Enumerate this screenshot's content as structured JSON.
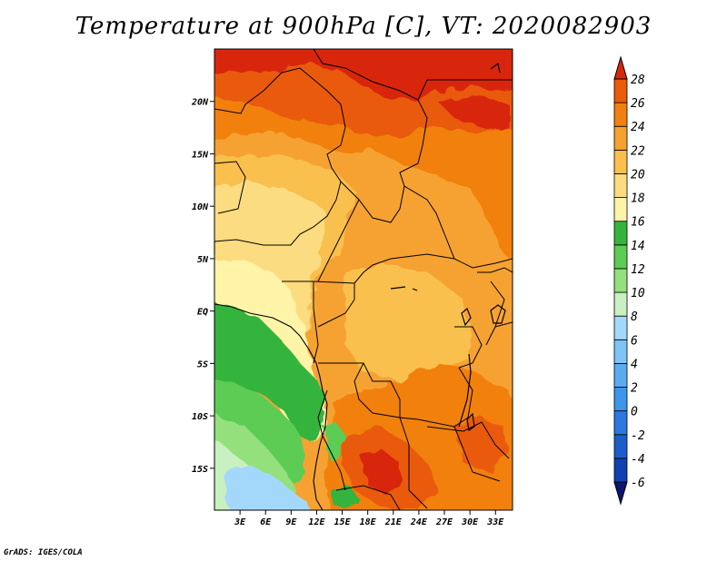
{
  "title": "Temperature at 900hPa [C], VT: 2020082903",
  "credit": "GrADS: IGES/COLA",
  "map": {
    "lon_range": [
      0,
      35
    ],
    "lat_range": [
      -19,
      25
    ],
    "x_ticks": [
      {
        "value": 3,
        "label": "3E"
      },
      {
        "value": 6,
        "label": "6E"
      },
      {
        "value": 9,
        "label": "9E"
      },
      {
        "value": 12,
        "label": "12E"
      },
      {
        "value": 15,
        "label": "15E"
      },
      {
        "value": 18,
        "label": "18E"
      },
      {
        "value": 21,
        "label": "21E"
      },
      {
        "value": 24,
        "label": "24E"
      },
      {
        "value": 27,
        "label": "27E"
      },
      {
        "value": 30,
        "label": "30E"
      },
      {
        "value": 33,
        "label": "33E"
      }
    ],
    "y_ticks": [
      {
        "value": 20,
        "label": "20N"
      },
      {
        "value": 15,
        "label": "15N"
      },
      {
        "value": 10,
        "label": "10N"
      },
      {
        "value": 5,
        "label": "5N"
      },
      {
        "value": 0,
        "label": "EQ"
      },
      {
        "value": -5,
        "label": "5S"
      },
      {
        "value": -10,
        "label": "10S"
      },
      {
        "value": -15,
        "label": "15S"
      }
    ]
  },
  "colorbar": {
    "levels": [
      "-6",
      "-4",
      "-2",
      "0",
      "2",
      "4",
      "6",
      "8",
      "10",
      "12",
      "14",
      "16",
      "18",
      "20",
      "22",
      "24",
      "26",
      "28"
    ],
    "colors": [
      "#0a1670",
      "#1240b0",
      "#1a5ecc",
      "#2a78e0",
      "#3c96ec",
      "#5aacf2",
      "#7ec4f6",
      "#a4d8fa",
      "#c8f0c0",
      "#94e07c",
      "#5ccc54",
      "#34b43c",
      "#fff4a8",
      "#fcdc80",
      "#f9c04e",
      "#f6a230",
      "#f28010",
      "#ea5a08",
      "#d8280a"
    ]
  },
  "field_colors": {
    "t28": "#d8280a",
    "t26": "#ea5a08",
    "t24": "#f28010",
    "t22": "#f6a230",
    "t20": "#f9c04e",
    "t18": "#fcdc80",
    "t16": "#fff4a8",
    "g14": "#34b43c",
    "g12": "#5ccc54",
    "g10": "#94e07c",
    "g8": "#c8f0c0",
    "b6": "#a4d8fa",
    "b4": "#7ec4f6"
  }
}
